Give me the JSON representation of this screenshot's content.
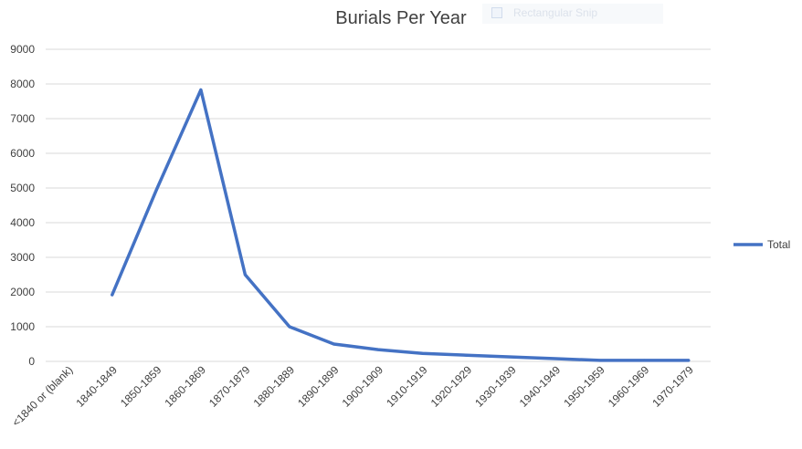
{
  "chart_data": {
    "type": "line",
    "title": "Burials Per Year",
    "xlabel": "",
    "ylabel": "",
    "ylim": [
      0,
      9000
    ],
    "yticks": [
      0,
      1000,
      2000,
      3000,
      4000,
      5000,
      6000,
      7000,
      8000,
      9000
    ],
    "grid": true,
    "legend_position": "right",
    "categories": [
      "<1840 or (blank)",
      "1840-1849",
      "1850-1859",
      "1860-1869",
      "1870-1879",
      "1880-1889",
      "1890-1899",
      "1900-1909",
      "1910-1919",
      "1920-1929",
      "1930-1939",
      "1940-1949",
      "1950-1959",
      "1960-1969",
      "1970-1979"
    ],
    "series": [
      {
        "name": "Total",
        "color": "#4472c4",
        "values": [
          null,
          1920,
          4950,
          7830,
          2500,
          1000,
          500,
          340,
          230,
          180,
          130,
          80,
          30,
          30,
          30
        ]
      }
    ]
  },
  "overlay": {
    "label": "Rectangular Snip",
    "icon": "snip-icon"
  }
}
